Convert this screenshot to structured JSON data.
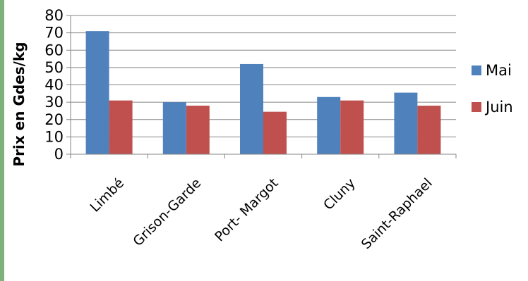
{
  "chart_data": {
    "type": "bar",
    "title": "",
    "xlabel": "",
    "ylabel": "Prix en Gdes/kg",
    "ylim": [
      0,
      80
    ],
    "yticks": [
      0,
      10,
      20,
      30,
      40,
      50,
      60,
      70,
      80
    ],
    "grid": true,
    "legend": "right",
    "categories": [
      "Limbé",
      "Grison-Garde",
      "Port- Margot",
      "Cluny",
      "Saint-Raphael"
    ],
    "series": [
      {
        "name": "Mai",
        "color": "#4f81bd",
        "values": [
          71,
          30,
          52,
          33,
          35.5
        ]
      },
      {
        "name": "Juin",
        "color": "#c0504d",
        "values": [
          31,
          28,
          24.5,
          31,
          28
        ]
      }
    ]
  }
}
